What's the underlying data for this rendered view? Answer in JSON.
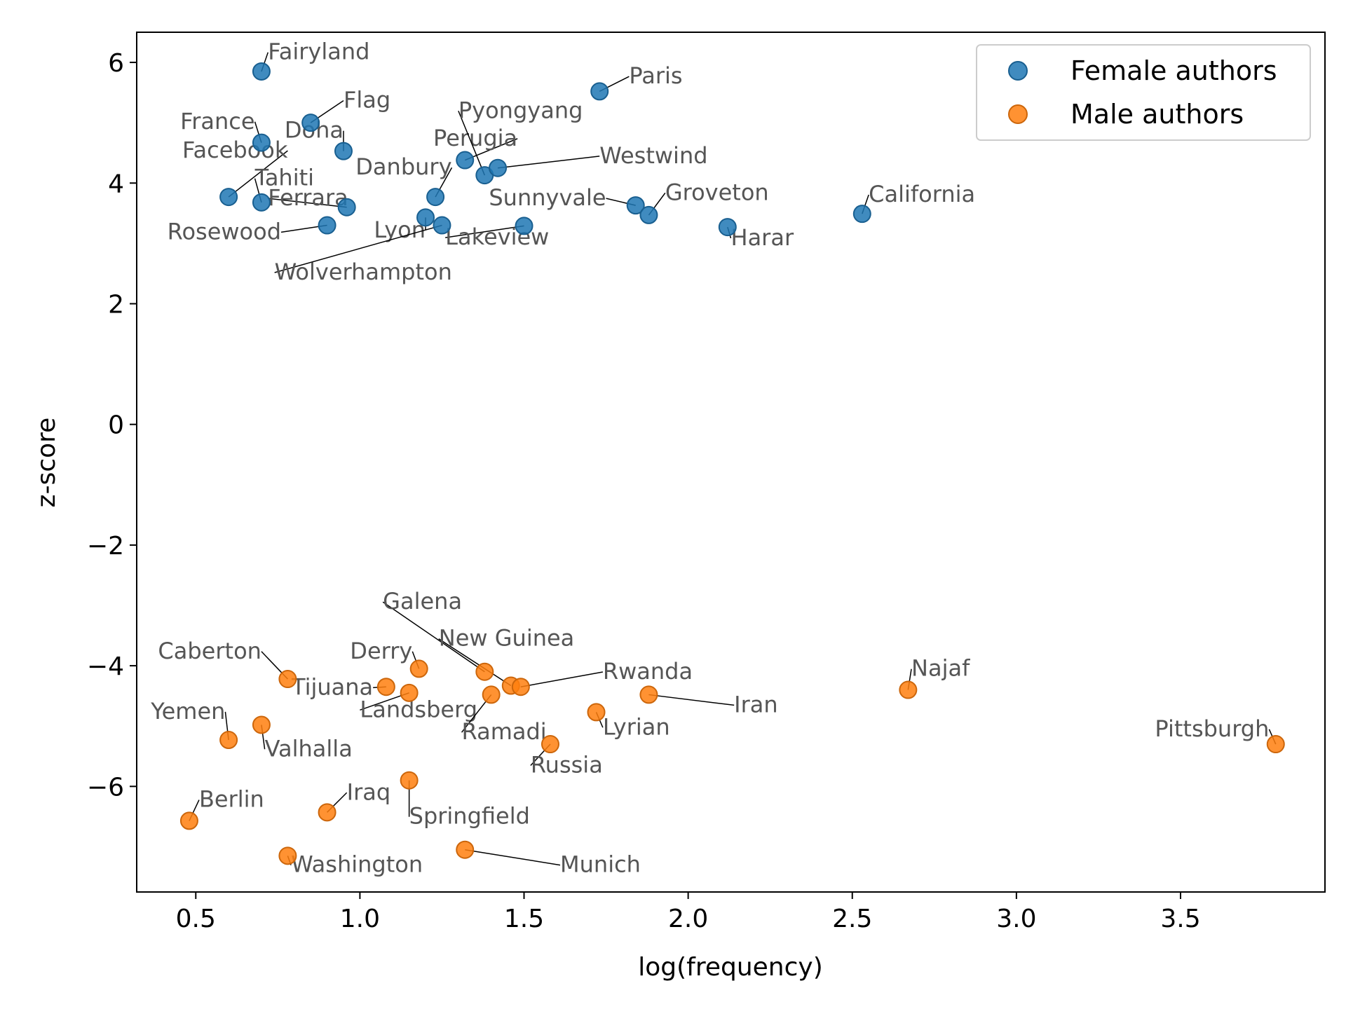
{
  "chart_data": {
    "type": "scatter",
    "xlabel": "log(frequency)",
    "ylabel": "z-score",
    "xlim": [
      0.32,
      3.94
    ],
    "ylim": [
      -7.75,
      6.5
    ],
    "xticks": [
      0.5,
      1.0,
      1.5,
      2.0,
      2.5,
      3.0,
      3.5
    ],
    "xtick_labels": [
      "0.5",
      "1.0",
      "1.5",
      "2.0",
      "2.5",
      "3.0",
      "3.5"
    ],
    "yticks": [
      6,
      4,
      2,
      0,
      -2,
      -4,
      -6
    ],
    "ytick_labels": [
      "6",
      "4",
      "2",
      "0",
      "−2",
      "−4",
      "−6"
    ],
    "grid": false,
    "legend_position": "top-right",
    "series": [
      {
        "name": "Female authors",
        "color": "#1f77b4",
        "points": [
          {
            "label": "Fairyland",
            "x": 0.7,
            "y": 5.85,
            "lx": 0.72,
            "ly": 6.05,
            "anchor": "start"
          },
          {
            "label": "Flag",
            "x": 0.85,
            "y": 5.0,
            "lx": 0.95,
            "ly": 5.25,
            "anchor": "start"
          },
          {
            "label": "France",
            "x": 0.7,
            "y": 4.67,
            "lx": 0.68,
            "ly": 4.9,
            "anchor": "end"
          },
          {
            "label": "Doha",
            "x": 0.95,
            "y": 4.53,
            "lx": 0.95,
            "ly": 4.75,
            "anchor": "end"
          },
          {
            "label": "Facebook",
            "x": 0.6,
            "y": 3.77,
            "lx": 0.78,
            "ly": 4.42,
            "anchor": "end"
          },
          {
            "label": "Tahiti",
            "x": 0.7,
            "y": 3.68,
            "lx": 0.68,
            "ly": 3.96,
            "anchor": "start"
          },
          {
            "label": "Ferrara",
            "x": 0.96,
            "y": 3.6,
            "lx": 0.72,
            "ly": 3.63,
            "anchor": "start"
          },
          {
            "label": "Rosewood",
            "x": 0.9,
            "y": 3.3,
            "lx": 0.76,
            "ly": 3.07,
            "anchor": "end"
          },
          {
            "label": "Danbury",
            "x": 1.23,
            "y": 3.77,
            "lx": 1.28,
            "ly": 4.14,
            "anchor": "end"
          },
          {
            "label": "Lyon",
            "x": 1.2,
            "y": 3.43,
            "lx": 1.2,
            "ly": 3.1,
            "anchor": "end"
          },
          {
            "label": "Wolverhampton",
            "x": 1.25,
            "y": 3.3,
            "lx": 0.74,
            "ly": 2.4,
            "anchor": "start"
          },
          {
            "label": "Perugia",
            "x": 1.32,
            "y": 4.38,
            "lx": 1.48,
            "ly": 4.62,
            "anchor": "end"
          },
          {
            "label": "Pyongyang",
            "x": 1.38,
            "y": 4.13,
            "lx": 1.3,
            "ly": 5.08,
            "anchor": "start"
          },
          {
            "label": "Westwind",
            "x": 1.42,
            "y": 4.25,
            "lx": 1.73,
            "ly": 4.33,
            "anchor": "start"
          },
          {
            "label": "Lakeview",
            "x": 1.5,
            "y": 3.29,
            "lx": 1.26,
            "ly": 2.98,
            "anchor": "start"
          },
          {
            "label": "Paris",
            "x": 1.73,
            "y": 5.52,
            "lx": 1.82,
            "ly": 5.65,
            "anchor": "start"
          },
          {
            "label": "Sunnyvale",
            "x": 1.84,
            "y": 3.63,
            "lx": 1.75,
            "ly": 3.63,
            "anchor": "end"
          },
          {
            "label": "Groveton",
            "x": 1.88,
            "y": 3.47,
            "lx": 1.93,
            "ly": 3.72,
            "anchor": "start"
          },
          {
            "label": "Harar",
            "x": 2.12,
            "y": 3.27,
            "lx": 2.13,
            "ly": 2.97,
            "anchor": "start"
          },
          {
            "label": "California",
            "x": 2.53,
            "y": 3.49,
            "lx": 2.55,
            "ly": 3.69,
            "anchor": "start"
          }
        ]
      },
      {
        "name": "Male authors",
        "color": "#ff7f0e",
        "points": [
          {
            "label": "Caberton",
            "x": 0.78,
            "y": -4.22,
            "lx": 0.7,
            "ly": -3.88,
            "anchor": "end"
          },
          {
            "label": "Tijuana",
            "x": 1.08,
            "y": -4.35,
            "lx": 1.04,
            "ly": -4.48,
            "anchor": "end"
          },
          {
            "label": "Derry",
            "x": 1.18,
            "y": -4.05,
            "lx": 1.16,
            "ly": -3.88,
            "anchor": "end"
          },
          {
            "label": "Landsberg",
            "x": 1.15,
            "y": -4.45,
            "lx": 1.0,
            "ly": -4.85,
            "anchor": "start"
          },
          {
            "label": "Galena",
            "x": 1.38,
            "y": -4.1,
            "lx": 1.07,
            "ly": -3.06,
            "anchor": "start"
          },
          {
            "label": "New Guinea",
            "x": 1.46,
            "y": -4.33,
            "lx": 1.24,
            "ly": -3.67,
            "anchor": "start"
          },
          {
            "label": "Ramadi",
            "x": 1.4,
            "y": -4.48,
            "lx": 1.31,
            "ly": -5.22,
            "anchor": "start"
          },
          {
            "label": "Rwanda",
            "x": 1.49,
            "y": -4.35,
            "lx": 1.74,
            "ly": -4.22,
            "anchor": "start"
          },
          {
            "label": "Iran",
            "x": 1.88,
            "y": -4.48,
            "lx": 2.14,
            "ly": -4.77,
            "anchor": "start"
          },
          {
            "label": "Lyrian",
            "x": 1.72,
            "y": -4.77,
            "lx": 1.74,
            "ly": -5.14,
            "anchor": "start"
          },
          {
            "label": "Russia",
            "x": 1.58,
            "y": -5.3,
            "lx": 1.52,
            "ly": -5.77,
            "anchor": "start"
          },
          {
            "label": "Yemen",
            "x": 0.6,
            "y": -5.23,
            "lx": 0.59,
            "ly": -4.88,
            "anchor": "end"
          },
          {
            "label": "Valhalla",
            "x": 0.7,
            "y": -4.98,
            "lx": 0.71,
            "ly": -5.5,
            "anchor": "start"
          },
          {
            "label": "Berlin",
            "x": 0.48,
            "y": -6.57,
            "lx": 0.51,
            "ly": -6.34,
            "anchor": "start"
          },
          {
            "label": "Iraq",
            "x": 0.9,
            "y": -6.43,
            "lx": 0.96,
            "ly": -6.22,
            "anchor": "start"
          },
          {
            "label": "Springfield",
            "x": 1.15,
            "y": -5.9,
            "lx": 1.15,
            "ly": -6.62,
            "anchor": "start"
          },
          {
            "label": "Washington",
            "x": 0.78,
            "y": -7.15,
            "lx": 0.79,
            "ly": -7.42,
            "anchor": "start"
          },
          {
            "label": "Munich",
            "x": 1.32,
            "y": -7.05,
            "lx": 1.61,
            "ly": -7.42,
            "anchor": "start"
          },
          {
            "label": "Najaf",
            "x": 2.67,
            "y": -4.4,
            "lx": 2.68,
            "ly": -4.17,
            "anchor": "start"
          },
          {
            "label": "Pittsburgh",
            "x": 3.79,
            "y": -5.3,
            "lx": 3.77,
            "ly": -5.17,
            "anchor": "end"
          }
        ]
      }
    ]
  }
}
